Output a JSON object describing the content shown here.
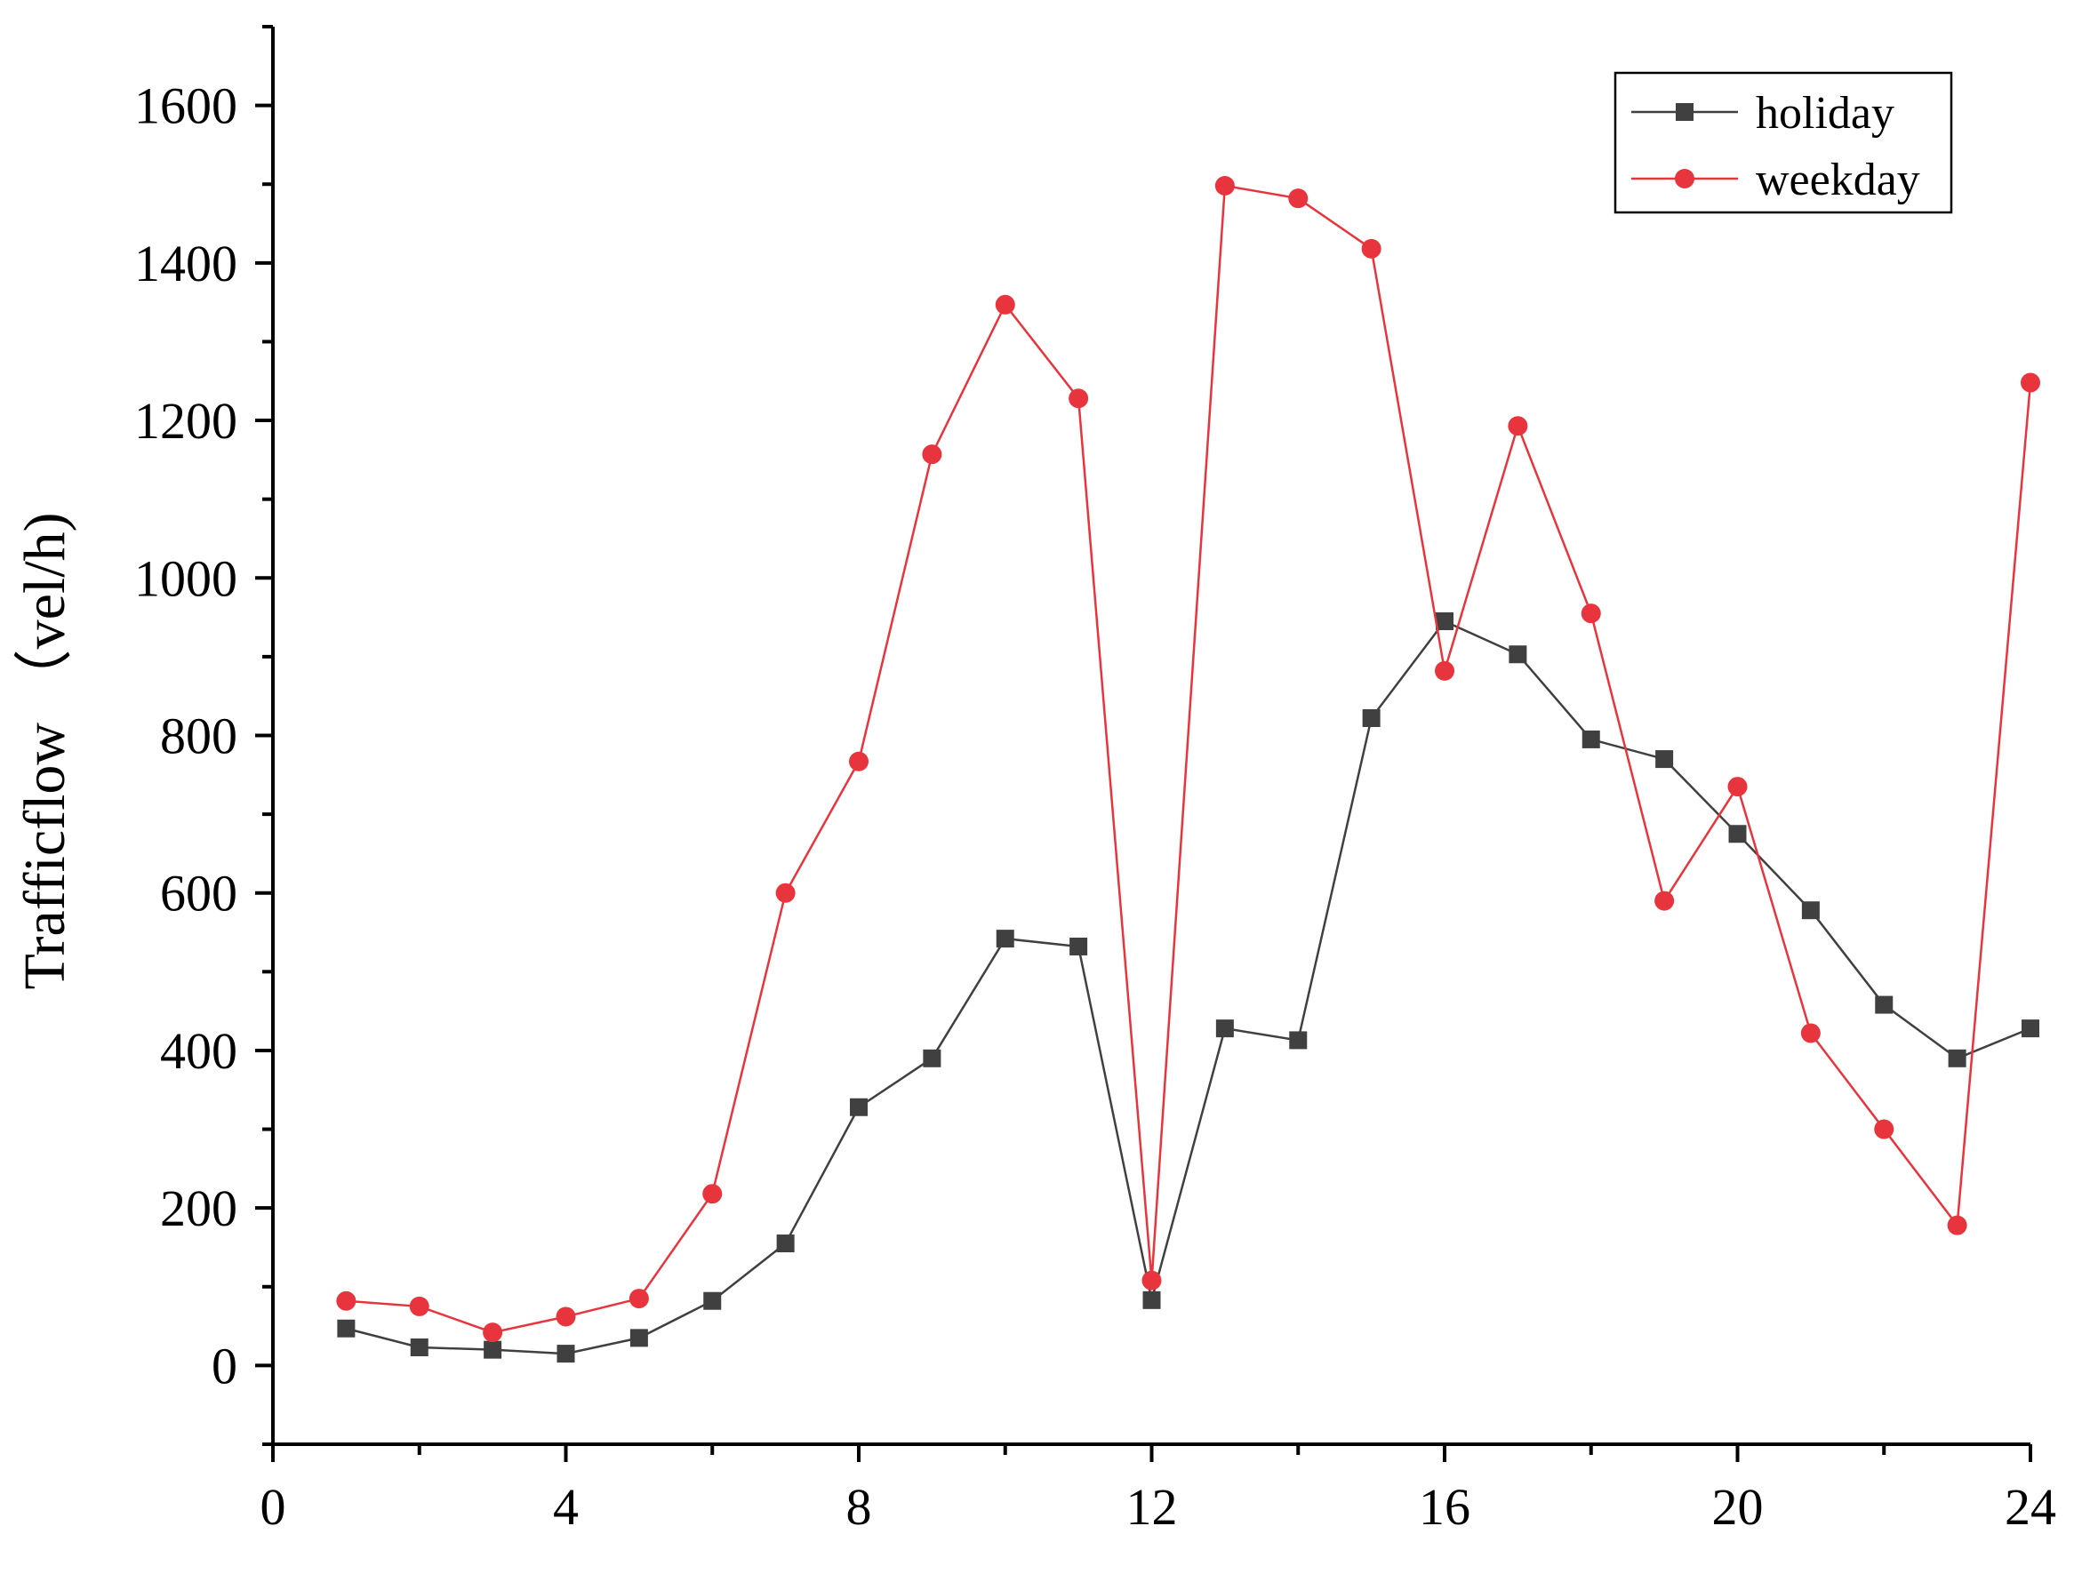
{
  "chart_data": {
    "type": "line",
    "title": "",
    "xlabel": "",
    "ylabel": "Trafficflow （vel/h)",
    "xlim": [
      0,
      24
    ],
    "ylim": [
      -100,
      1700
    ],
    "x_ticks": [
      0,
      4,
      8,
      12,
      16,
      20,
      24
    ],
    "x_tick_labels": [
      "0",
      "4",
      "8",
      "12",
      "16",
      "20",
      "24"
    ],
    "y_ticks": [
      0,
      200,
      400,
      600,
      800,
      1000,
      1200,
      1400,
      1600
    ],
    "y_tick_labels": [
      "0",
      "200",
      "400",
      "600",
      "800",
      "1000",
      "1200",
      "1400",
      "1600"
    ],
    "grid": false,
    "legend_position": "top-right",
    "x": [
      1,
      2,
      3,
      4,
      5,
      6,
      7,
      8,
      9,
      10,
      11,
      12,
      13,
      14,
      15,
      16,
      17,
      18,
      19,
      20,
      21,
      22,
      23,
      24
    ],
    "series": [
      {
        "name": "holiday",
        "color": "#404040",
        "marker": "square",
        "values": [
          47,
          23,
          20,
          15,
          35,
          82,
          155,
          328,
          390,
          542,
          532,
          83,
          428,
          413,
          822,
          945,
          903,
          795,
          770,
          675,
          578,
          458,
          390,
          428
        ]
      },
      {
        "name": "weekday",
        "color": "#e8343c",
        "marker": "circle",
        "values": [
          82,
          75,
          42,
          62,
          85,
          218,
          600,
          767,
          1157,
          1347,
          1228,
          108,
          1498,
          1482,
          1418,
          882,
          1193,
          955,
          590,
          735,
          422,
          300,
          178,
          1248
        ]
      }
    ]
  }
}
